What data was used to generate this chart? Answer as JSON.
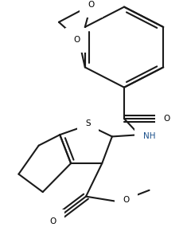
{
  "bg_color": "#ffffff",
  "line_color": "#1a1a1a",
  "line_width": 1.5,
  "nh_color": "#1a4f8a",
  "fig_width": 2.35,
  "fig_height": 2.85,
  "dpi": 100,
  "xlim": [
    0,
    235
  ],
  "ylim": [
    0,
    285
  ]
}
